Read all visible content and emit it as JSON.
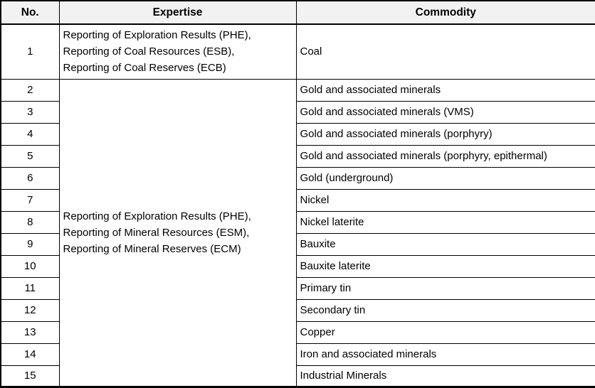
{
  "table": {
    "header": {
      "no": "No.",
      "expertise": "Expertise",
      "commodity": "Commodity"
    },
    "group1": {
      "expertise_lines": [
        "Reporting of Exploration Results (PHE),",
        "Reporting of Coal Resources (ESB),",
        "Reporting of Coal Reserves (ECB)"
      ],
      "rows": [
        {
          "no": "1",
          "commodity": "Coal"
        }
      ]
    },
    "group2": {
      "expertise_lines": [
        "Reporting of Exploration Results (PHE),",
        "Reporting of Mineral Resources (ESM),",
        "Reporting of Mineral Reserves (ECM)"
      ],
      "rows": [
        {
          "no": "2",
          "commodity": "Gold and associated minerals"
        },
        {
          "no": "3",
          "commodity": "Gold and associated minerals (VMS)"
        },
        {
          "no": "4",
          "commodity": "Gold and associated minerals (porphyry)"
        },
        {
          "no": "5",
          "commodity": "Gold and associated minerals (porphyry, epithermal)"
        },
        {
          "no": "6",
          "commodity": "Gold (underground)"
        },
        {
          "no": "7",
          "commodity": "Nickel"
        },
        {
          "no": "8",
          "commodity": "Nickel laterite"
        },
        {
          "no": "9",
          "commodity": "Bauxite"
        },
        {
          "no": "10",
          "commodity": "Bauxite laterite"
        },
        {
          "no": "11",
          "commodity": "Primary tin"
        },
        {
          "no": "12",
          "commodity": "Secondary tin"
        },
        {
          "no": "13",
          "commodity": "Copper"
        },
        {
          "no": "14",
          "commodity": "Iron and associated minerals"
        },
        {
          "no": "15",
          "commodity": "Industrial Minerals"
        }
      ]
    },
    "colors": {
      "header_bg": "#f2f2f2",
      "border": "#000000",
      "text": "#000000"
    }
  }
}
